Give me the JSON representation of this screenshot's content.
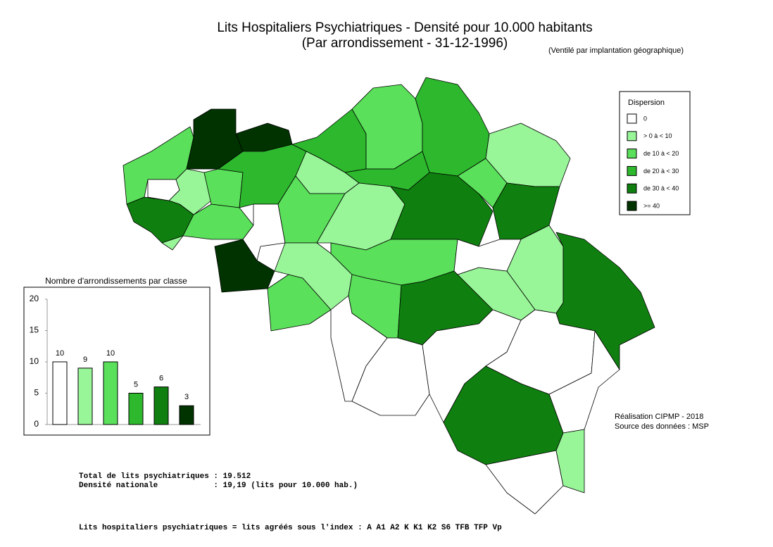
{
  "header": {
    "title": "Lits Hospitaliers Psychiatriques  - Densité pour 10.000 habitants",
    "subtitle": "(Par arrondissement - 31-12-1996)",
    "note": "(Ventilé par implantation géographique)"
  },
  "legend": {
    "title": "Dispersion",
    "items": [
      {
        "label": "0",
        "color": "#ffffff"
      },
      {
        "label": "> 0 à < 10",
        "color": "#98f598"
      },
      {
        "label": "de 10 à < 20",
        "color": "#5ae05a"
      },
      {
        "label": "de 20 à < 30",
        "color": "#2db82d"
      },
      {
        "label": "de 30 à < 40",
        "color": "#0f7f0f"
      },
      {
        "label": ">= 40",
        "color": "#003300"
      }
    ]
  },
  "chart_data": {
    "type": "bar",
    "title": "Nombre d'arrondissements par classe",
    "values": [
      10,
      9,
      10,
      5,
      6,
      3
    ],
    "colors": [
      "#ffffff",
      "#98f598",
      "#5ae05a",
      "#2db82d",
      "#0f7f0f",
      "#003300"
    ],
    "ylim": [
      0,
      20
    ],
    "yticks": [
      0,
      5,
      10,
      15,
      20
    ]
  },
  "credits": [
    "Réalisation CIPMP - 2018",
    "Source des données : MSP"
  ],
  "totals": [
    "Total de lits psychiatriques : 19.512",
    "Densité nationale            : 19,19 (lits pour 10.000 hab.)"
  ],
  "footer": "Lits hospitaliers psychiatriques = lits agréés sous l'index : A A1 A2 K K1 K2 S6 TFB TFP Vp"
}
